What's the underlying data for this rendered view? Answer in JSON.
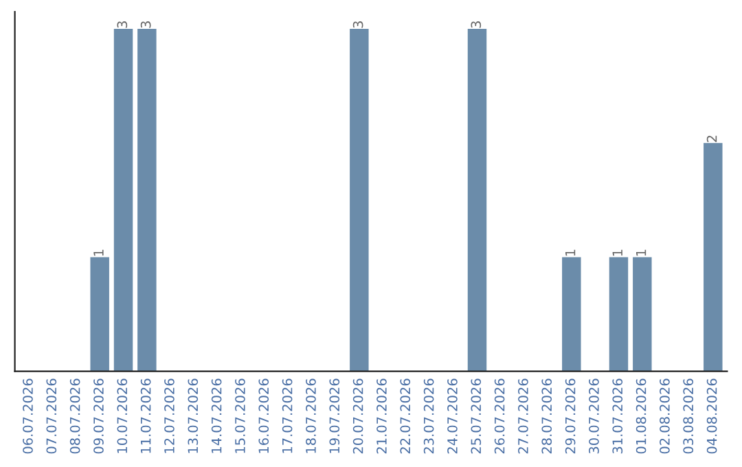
{
  "chart_data": {
    "type": "bar",
    "categories": [
      "06.07.2026",
      "07.07.2026",
      "08.07.2026",
      "09.07.2026",
      "10.07.2026",
      "11.07.2026",
      "12.07.2026",
      "13.07.2026",
      "14.07.2026",
      "15.07.2026",
      "16.07.2026",
      "17.07.2026",
      "18.07.2026",
      "19.07.2026",
      "20.07.2026",
      "21.07.2026",
      "22.07.2026",
      "23.07.2026",
      "24.07.2026",
      "25.07.2026",
      "26.07.2026",
      "27.07.2026",
      "28.07.2026",
      "29.07.2026",
      "30.07.2026",
      "31.07.2026",
      "01.08.2026",
      "02.08.2026",
      "03.08.2026",
      "04.08.2026"
    ],
    "values": [
      0,
      0,
      0,
      1,
      3,
      3,
      0,
      0,
      0,
      0,
      0,
      0,
      0,
      0,
      3,
      0,
      0,
      0,
      0,
      3,
      0,
      0,
      0,
      1,
      0,
      1,
      1,
      0,
      0,
      2
    ],
    "value_labels": [
      null,
      null,
      null,
      "1",
      "3",
      "3",
      null,
      null,
      null,
      null,
      null,
      null,
      null,
      null,
      "3",
      null,
      null,
      null,
      null,
      "3",
      null,
      null,
      null,
      "1",
      null,
      "1",
      "1",
      null,
      null,
      "2"
    ],
    "color": "#6b8caa",
    "tick_labels": "x",
    "grid": false,
    "legend": false
  }
}
